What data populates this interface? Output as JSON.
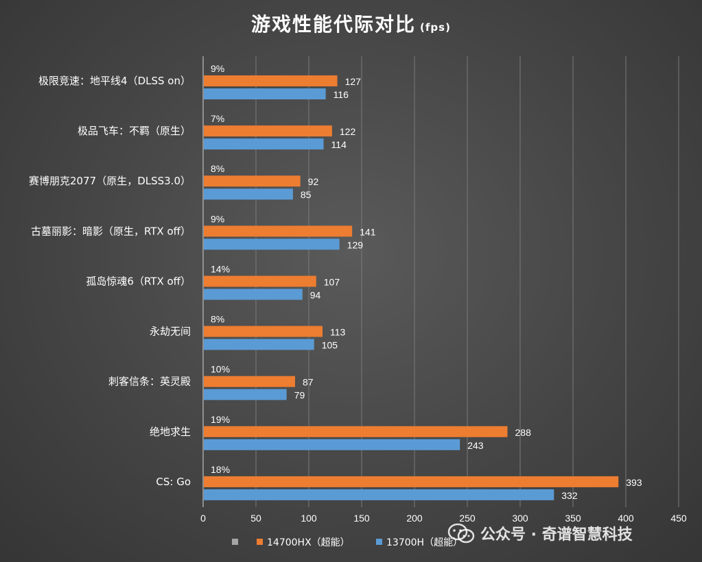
{
  "title": "游戏性能代际对比",
  "title_unit": "(fps)",
  "watermark": "公众号 · 奇谱智慧科技",
  "colors": {
    "series_1": "#ed7d31",
    "series_2": "#5b9bd5",
    "series_0": "#a5a5a5",
    "grid": "#7a7a7a"
  },
  "chart_data": {
    "type": "bar",
    "orientation": "horizontal",
    "categories": [
      "极限竞速：地平线4（DLSS on）",
      "极品飞车：不羁（原生）",
      "赛博朋克2077（原生，DLSS3.0）",
      "古墓丽影：暗影（原生，RTX off）",
      "孤岛惊魂6（RTX off）",
      "永劫无间",
      "刺客信条：英灵殿",
      "绝地求生",
      "CS: Go"
    ],
    "series": [
      {
        "name": "",
        "values": [
          9,
          7,
          8,
          9,
          14,
          8,
          10,
          19,
          18
        ],
        "labels": [
          "9%",
          "7%",
          "8%",
          "9%",
          "14%",
          "8%",
          "10%",
          "19%",
          "18%"
        ]
      },
      {
        "name": "14700HX（超能）",
        "values": [
          127,
          122,
          92,
          141,
          107,
          113,
          87,
          288,
          393
        ]
      },
      {
        "name": "13700H（超能）",
        "values": [
          116,
          114,
          85,
          129,
          94,
          105,
          79,
          243,
          332
        ]
      }
    ],
    "xlim": [
      0,
      450
    ],
    "xticks": [
      0,
      50,
      100,
      150,
      200,
      250,
      300,
      350,
      400,
      450
    ],
    "grid": true,
    "legend_position": "bottom"
  }
}
